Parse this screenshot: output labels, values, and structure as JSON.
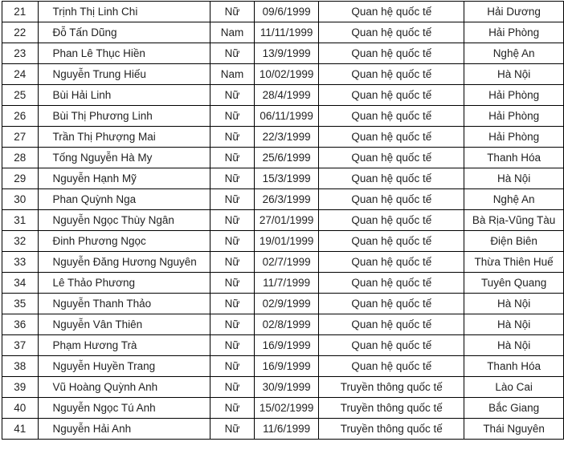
{
  "rows": [
    {
      "no": "21",
      "name": "Trịnh Thị Linh Chi",
      "gender": "Nữ",
      "dob": "09/6/1999",
      "major": "Quan hệ quốc tế",
      "province": "Hải Dương"
    },
    {
      "no": "22",
      "name": "Đỗ Tấn Dũng",
      "gender": "Nam",
      "dob": "11/11/1999",
      "major": "Quan hệ quốc tế",
      "province": "Hải Phòng"
    },
    {
      "no": "23",
      "name": "Phan Lê Thục Hiền",
      "gender": "Nữ",
      "dob": "13/9/1999",
      "major": "Quan hệ quốc tế",
      "province": "Nghệ An"
    },
    {
      "no": "24",
      "name": "Nguyễn Trung Hiếu",
      "gender": "Nam",
      "dob": "10/02/1999",
      "major": "Quan hệ quốc tế",
      "province": "Hà Nội"
    },
    {
      "no": "25",
      "name": "Bùi Hải Linh",
      "gender": "Nữ",
      "dob": "28/4/1999",
      "major": "Quan hệ quốc tế",
      "province": "Hải Phòng"
    },
    {
      "no": "26",
      "name": "Bùi Thị Phương Linh",
      "gender": "Nữ",
      "dob": "06/11/1999",
      "major": "Quan hệ quốc tế",
      "province": "Hải Phòng"
    },
    {
      "no": "27",
      "name": "Trần Thị Phượng Mai",
      "gender": "Nữ",
      "dob": "22/3/1999",
      "major": "Quan hệ quốc tế",
      "province": "Hải Phòng"
    },
    {
      "no": "28",
      "name": "Tống Nguyễn Hà My",
      "gender": "Nữ",
      "dob": "25/6/1999",
      "major": "Quan hệ quốc tế",
      "province": "Thanh Hóa"
    },
    {
      "no": "29",
      "name": "Nguyễn Hạnh Mỹ",
      "gender": "Nữ",
      "dob": "15/3/1999",
      "major": "Quan hệ quốc tế",
      "province": "Hà Nội"
    },
    {
      "no": "30",
      "name": "Phan Quỳnh Nga",
      "gender": "Nữ",
      "dob": "26/3/1999",
      "major": "Quan hệ quốc tế",
      "province": "Nghệ An"
    },
    {
      "no": "31",
      "name": "Nguyễn Ngọc Thùy Ngân",
      "gender": "Nữ",
      "dob": "27/01/1999",
      "major": "Quan hệ quốc tế",
      "province": "Bà Rịa-Vũng Tàu"
    },
    {
      "no": "32",
      "name": "Đinh Phương Ngọc",
      "gender": "Nữ",
      "dob": "19/01/1999",
      "major": "Quan hệ quốc tế",
      "province": "Điện Biên"
    },
    {
      "no": "33",
      "name": "Nguyễn Đăng Hương Nguyên",
      "gender": "Nữ",
      "dob": "02/7/1999",
      "major": "Quan hệ quốc tế",
      "province": "Thừa Thiên Huế"
    },
    {
      "no": "34",
      "name": "Lê Thảo Phương",
      "gender": "Nữ",
      "dob": "11/7/1999",
      "major": "Quan hệ quốc tế",
      "province": "Tuyên Quang"
    },
    {
      "no": "35",
      "name": "Nguyễn Thanh Thảo",
      "gender": "Nữ",
      "dob": "02/9/1999",
      "major": "Quan hệ quốc tế",
      "province": "Hà Nội"
    },
    {
      "no": "36",
      "name": "Nguyễn Vân Thiên",
      "gender": "Nữ",
      "dob": "02/8/1999",
      "major": "Quan hệ quốc tế",
      "province": "Hà Nội"
    },
    {
      "no": "37",
      "name": "Phạm Hương Trà",
      "gender": "Nữ",
      "dob": "16/9/1999",
      "major": "Quan hệ quốc tế",
      "province": "Hà Nội"
    },
    {
      "no": "38",
      "name": "Nguyễn Huyền Trang",
      "gender": "Nữ",
      "dob": "16/9/1999",
      "major": "Quan hệ quốc tế",
      "province": "Thanh Hóa"
    },
    {
      "no": "39",
      "name": "Vũ Hoàng Quỳnh Anh",
      "gender": "Nữ",
      "dob": "30/9/1999",
      "major": "Truyền thông quốc tế",
      "province": "Lào Cai"
    },
    {
      "no": "40",
      "name": "Nguyễn Ngọc Tú Anh",
      "gender": "Nữ",
      "dob": "15/02/1999",
      "major": "Truyền thông quốc tế",
      "province": "Bắc Giang"
    },
    {
      "no": "41",
      "name": "Nguyễn Hải Anh",
      "gender": "Nữ",
      "dob": "11/6/1999",
      "major": "Truyền thông quốc tế",
      "province": "Thái Nguyên"
    }
  ]
}
